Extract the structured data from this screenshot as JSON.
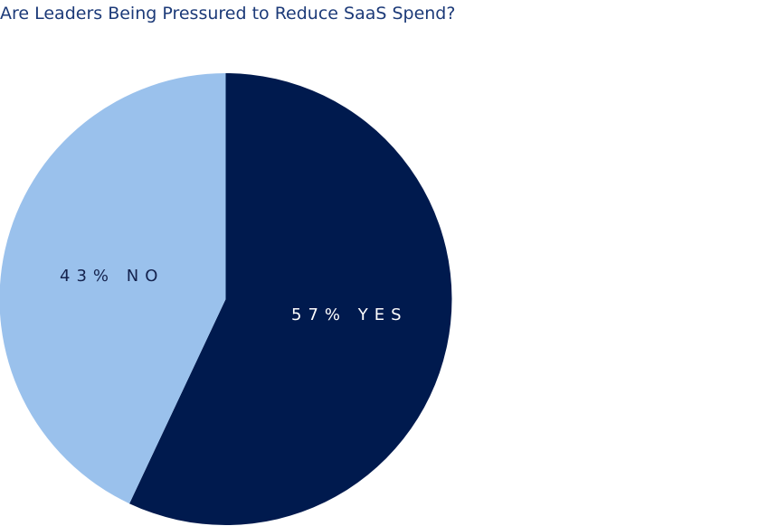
{
  "title": "Are Leaders Being Pressured to Reduce SaaS Spend?",
  "colors": {
    "yes": "#001a4e",
    "no": "#9ac1ec",
    "title": "#1c3a78",
    "label_on_dark": "#ffffff",
    "label_on_light": "#14224d"
  },
  "labels": {
    "yes": "57% YES",
    "no": "43% NO"
  },
  "chart_data": {
    "type": "pie",
    "title": "Are Leaders Being Pressured to Reduce SaaS Spend?",
    "categories": [
      "Yes",
      "No"
    ],
    "values": [
      57,
      43
    ],
    "unit": "%",
    "data_labels": [
      "57% YES",
      "43% NO"
    ],
    "start_angle": "12 o'clock, clockwise",
    "legend": "none"
  }
}
